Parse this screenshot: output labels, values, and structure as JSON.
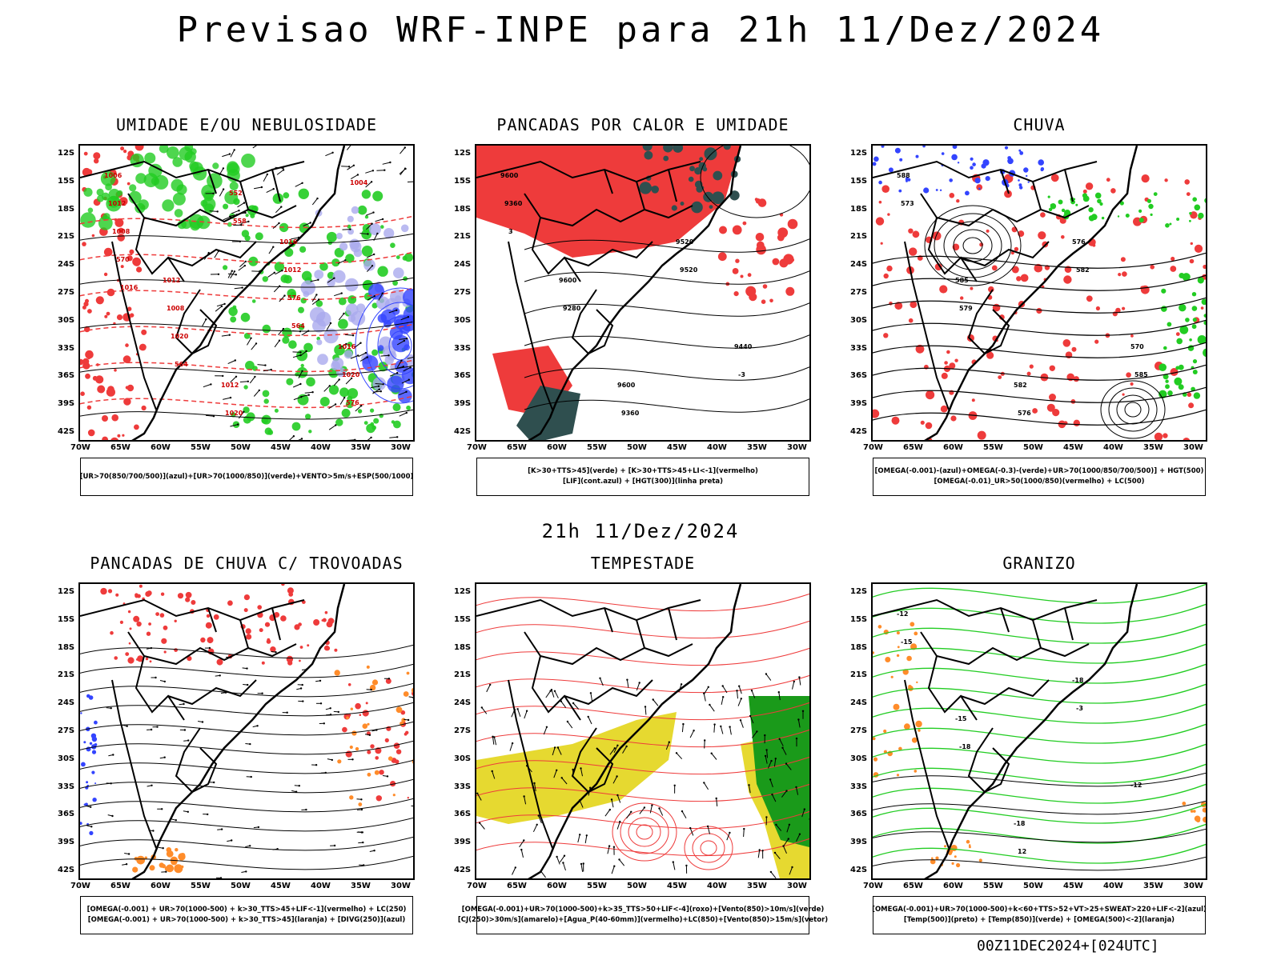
{
  "header": {
    "title": "Previsao WRF-INPE  para 21h 11/Dez/2024",
    "subtitle": "21h 11/Dez/2024",
    "footer": "00Z11DEC2024+[024UTC]"
  },
  "axes": {
    "lat_labels": [
      "12S",
      "15S",
      "18S",
      "21S",
      "24S",
      "27S",
      "30S",
      "33S",
      "36S",
      "39S",
      "42S"
    ],
    "lon_labels": [
      "70W",
      "65W",
      "60W",
      "55W",
      "50W",
      "45W",
      "40W",
      "35W",
      "30W"
    ]
  },
  "colors": {
    "coast": "#000000",
    "contour": "#000000",
    "green": "#22cc22",
    "red": "#ee3b3b",
    "blue": "#3344ff",
    "lavender": "#aaaaee",
    "yellow": "#e6d930",
    "orange": "#ff8c2a",
    "darkteal": "#2f4f4f"
  },
  "panels": [
    {
      "id": "umidade",
      "title": "UMIDADE E/OU NEBULOSIDADE",
      "legend": [
        "[UR>70(850/700/500)](azul)+[UR>70(1000/850)](verde)+VENTO>5m/s+ESP(500/1000)"
      ],
      "labels": [
        "1006",
        "1012",
        "1012",
        "1016",
        "1016",
        "1012",
        "1008",
        "1020",
        "1012",
        "1020",
        "1008",
        "1020",
        "552",
        "576",
        "576",
        "570",
        "564",
        "558",
        "564",
        "1004",
        "1016"
      ]
    },
    {
      "id": "calor",
      "title": "PANCADAS POR CALOR E UMIDADE",
      "legend": [
        "[K>30+TTS>45](verde) + [K>30+TTS>45+LI<-1](vermelho)",
        "[LIF](cont.azul) + [HGT(300)](linha preta)"
      ],
      "labels": [
        "9600",
        "9600",
        "9600",
        "9520",
        "9440",
        "9360",
        "9280",
        "9360",
        "9520",
        "-3",
        "3"
      ]
    },
    {
      "id": "chuva",
      "title": "CHUVA",
      "legend": [
        "[OMEGA(-0.001)-(azul)+OMEGA(-0.3)-(verde)+UR>70(1000/850/700/500)] + HGT(500)",
        "[OMEGA(-0.01)_UR>50(1000/850)(vermelho) + LC(500)"
      ],
      "labels": [
        "588",
        "585",
        "582",
        "576",
        "570",
        "573",
        "579",
        "576",
        "582",
        "585"
      ]
    },
    {
      "id": "trovoadas",
      "title": "PANCADAS DE CHUVA C/ TROVOADAS",
      "legend": [
        "[OMEGA(-0.001) + UR>70(1000-500) + k>30_TTS>45+LIF<-1](vermelho) + LC(250)",
        "[OMEGA(-0.001) + UR>70(1000-500) + k>30_TTS>45](laranja) + [DIVG(250)](azul)"
      ],
      "labels": []
    },
    {
      "id": "tempestade",
      "title": "TEMPESTADE",
      "legend": [
        "[OMEGA(-0.001)+UR>70(1000-500)+k>35_TTS>50+LIF<-4](roxo)+[Vento(850)>10m/s](verde)",
        "[CJ(250)>30m/s](amarelo)+[Agua_P(40-60mm)](vermelho)+LC(850)+[Vento(850)>15m/s](vetor)"
      ],
      "labels": []
    },
    {
      "id": "granizo",
      "title": "GRANIZO",
      "legend": [
        "[OMEGA(-0.001)+UR>70(1000-500)+k<60+TTS>52+VT>25+SWEAT>220+LIF<-2](azul)",
        "[Temp(500)](preto) + [Temp(850)](verde) + [OMEGA(500)<-2](laranja)"
      ],
      "labels": [
        "-12",
        "-15",
        "-18",
        "-18",
        "-12",
        "-15",
        "-18",
        "12",
        "-3"
      ]
    }
  ]
}
